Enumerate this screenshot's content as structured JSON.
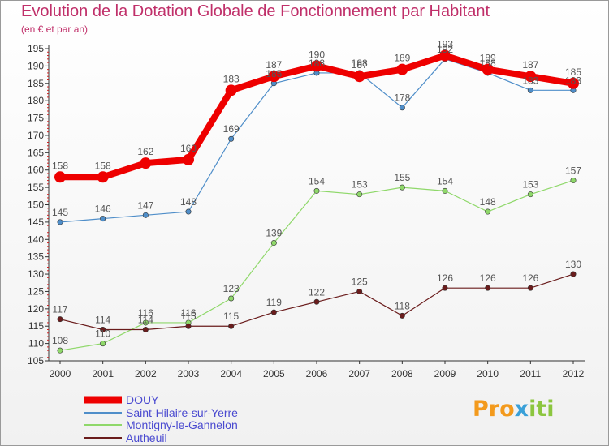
{
  "title": "Evolution de la Dotation Globale de Fonctionnement par Habitant",
  "subtitle": "(en € et par an)",
  "logo": {
    "text": "Proxiti"
  },
  "chart_data": {
    "type": "line",
    "x": [
      "2000",
      "2001",
      "2002",
      "2003",
      "2004",
      "2005",
      "2006",
      "2007",
      "2008",
      "2009",
      "2010",
      "2011",
      "2012"
    ],
    "ylim": [
      105,
      195
    ],
    "yticks": [
      105,
      110,
      115,
      120,
      125,
      130,
      135,
      140,
      145,
      150,
      155,
      160,
      165,
      170,
      175,
      180,
      185,
      190,
      195
    ],
    "grid": false,
    "legend_position": "bottom-left",
    "series": [
      {
        "name": "DOUY",
        "color": "#ee0000",
        "width": 8,
        "marker": 7,
        "values": [
          158,
          158,
          162,
          163,
          183,
          187,
          190,
          187,
          189,
          193,
          189,
          187,
          185
        ]
      },
      {
        "name": "Saint-Hilaire-sur-Yerre",
        "color": "#4f8ec9",
        "width": 1.2,
        "marker": 3.2,
        "values": [
          145,
          146,
          147,
          148,
          169,
          185,
          188,
          188,
          178,
          192,
          188,
          183,
          183
        ]
      },
      {
        "name": "Montigny-le-Gannelon",
        "color": "#8fd86a",
        "width": 1.2,
        "marker": 3.2,
        "values": [
          108,
          110,
          116,
          116,
          123,
          139,
          154,
          153,
          155,
          154,
          148,
          153,
          157
        ]
      },
      {
        "name": "Autheuil",
        "color": "#6a1c1c",
        "width": 1.2,
        "marker": 3.2,
        "values": [
          117,
          114,
          114,
          115,
          115,
          119,
          122,
          125,
          118,
          126,
          126,
          126,
          130
        ]
      }
    ]
  }
}
